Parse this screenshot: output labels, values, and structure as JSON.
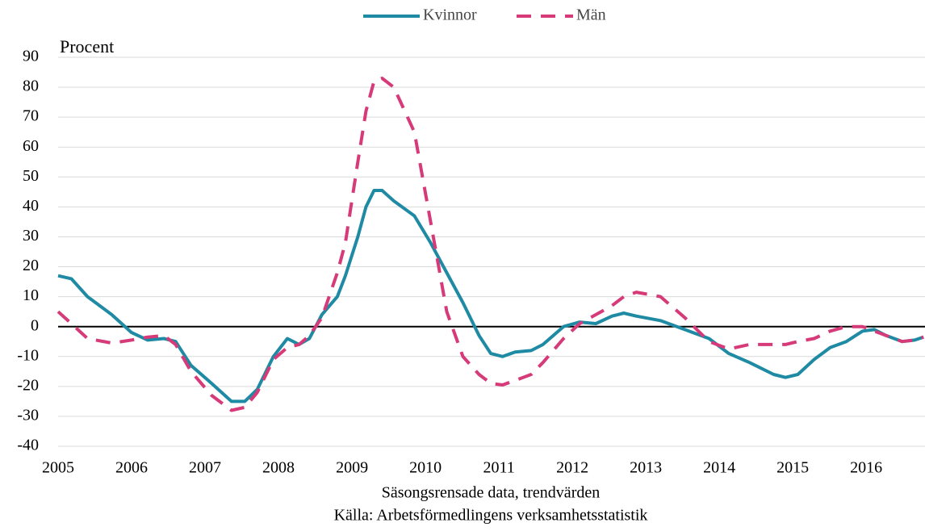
{
  "chart_data": {
    "type": "line",
    "ylabel": "Procent",
    "xlabel": "Säsongsrensade data, trendvärden",
    "source": "Källa: Arbetsförmedlingens verksamhetsstatistik",
    "x": [
      2005.0,
      2005.18,
      2005.4,
      2005.73,
      2006.0,
      2006.22,
      2006.44,
      2006.6,
      2006.81,
      2007.09,
      2007.36,
      2007.54,
      2007.71,
      2007.93,
      2008.12,
      2008.28,
      2008.42,
      2008.59,
      2008.8,
      2008.91,
      2009.08,
      2009.19,
      2009.3,
      2009.41,
      2009.57,
      2009.85,
      2010.07,
      2010.29,
      2010.51,
      2010.73,
      2010.89,
      2011.05,
      2011.22,
      2011.44,
      2011.6,
      2011.88,
      2012.1,
      2012.32,
      2012.54,
      2012.7,
      2012.87,
      2013.2,
      2013.53,
      2013.86,
      2014.13,
      2014.41,
      2014.74,
      2014.9,
      2015.07,
      2015.29,
      2015.51,
      2015.73,
      2015.95,
      2016.11,
      2016.27,
      2016.49,
      2016.66,
      2016.78
    ],
    "series": [
      {
        "name": "Kvinnor",
        "color": "#1f8aa3",
        "dashed": false,
        "values": [
          17,
          16,
          10,
          4,
          -2,
          -4.5,
          -4,
          -5,
          -13,
          -19,
          -25,
          -25,
          -21,
          -10,
          -4,
          -6,
          -4,
          4,
          10,
          17,
          30,
          40,
          45.5,
          45.5,
          42,
          37,
          28,
          18,
          8,
          -3,
          -9,
          -10,
          -8.5,
          -8,
          -6,
          0,
          1.5,
          1,
          3.5,
          4.5,
          3.5,
          2,
          -1,
          -4,
          -9,
          -12,
          -16,
          -17,
          -16,
          -11,
          -7,
          -5,
          -1.5,
          -1,
          -3,
          -5,
          -4.5,
          -3.5
        ]
      },
      {
        "name": "Män",
        "color": "#d63a78",
        "dashed": true,
        "values": [
          5,
          1,
          -4,
          -5.5,
          -4.5,
          -3.5,
          -3,
          -6,
          -15,
          -23,
          -28,
          -27,
          -22,
          -11,
          -7,
          -6,
          -3,
          3,
          18,
          28,
          55,
          72,
          82,
          83,
          80,
          65,
          35,
          5,
          -10,
          -16,
          -19,
          -19.5,
          -18,
          -16,
          -12,
          -4,
          1,
          4,
          7,
          10,
          11.5,
          10,
          3,
          -5,
          -7.5,
          -6,
          -6,
          -6,
          -5,
          -4,
          -1.5,
          0,
          0,
          -1.5,
          -3,
          -5,
          -4.5,
          -3.5
        ]
      }
    ],
    "xlim": [
      2005,
      2016.8
    ],
    "xticks": [
      2005,
      2006,
      2007,
      2008,
      2009,
      2010,
      2011,
      2012,
      2013,
      2014,
      2015,
      2016
    ],
    "ylim": [
      -40,
      90
    ],
    "yticks": [
      -40,
      -30,
      -20,
      -10,
      0,
      10,
      20,
      30,
      40,
      50,
      60,
      70,
      80,
      90
    ],
    "grid": true,
    "legend": "top"
  }
}
